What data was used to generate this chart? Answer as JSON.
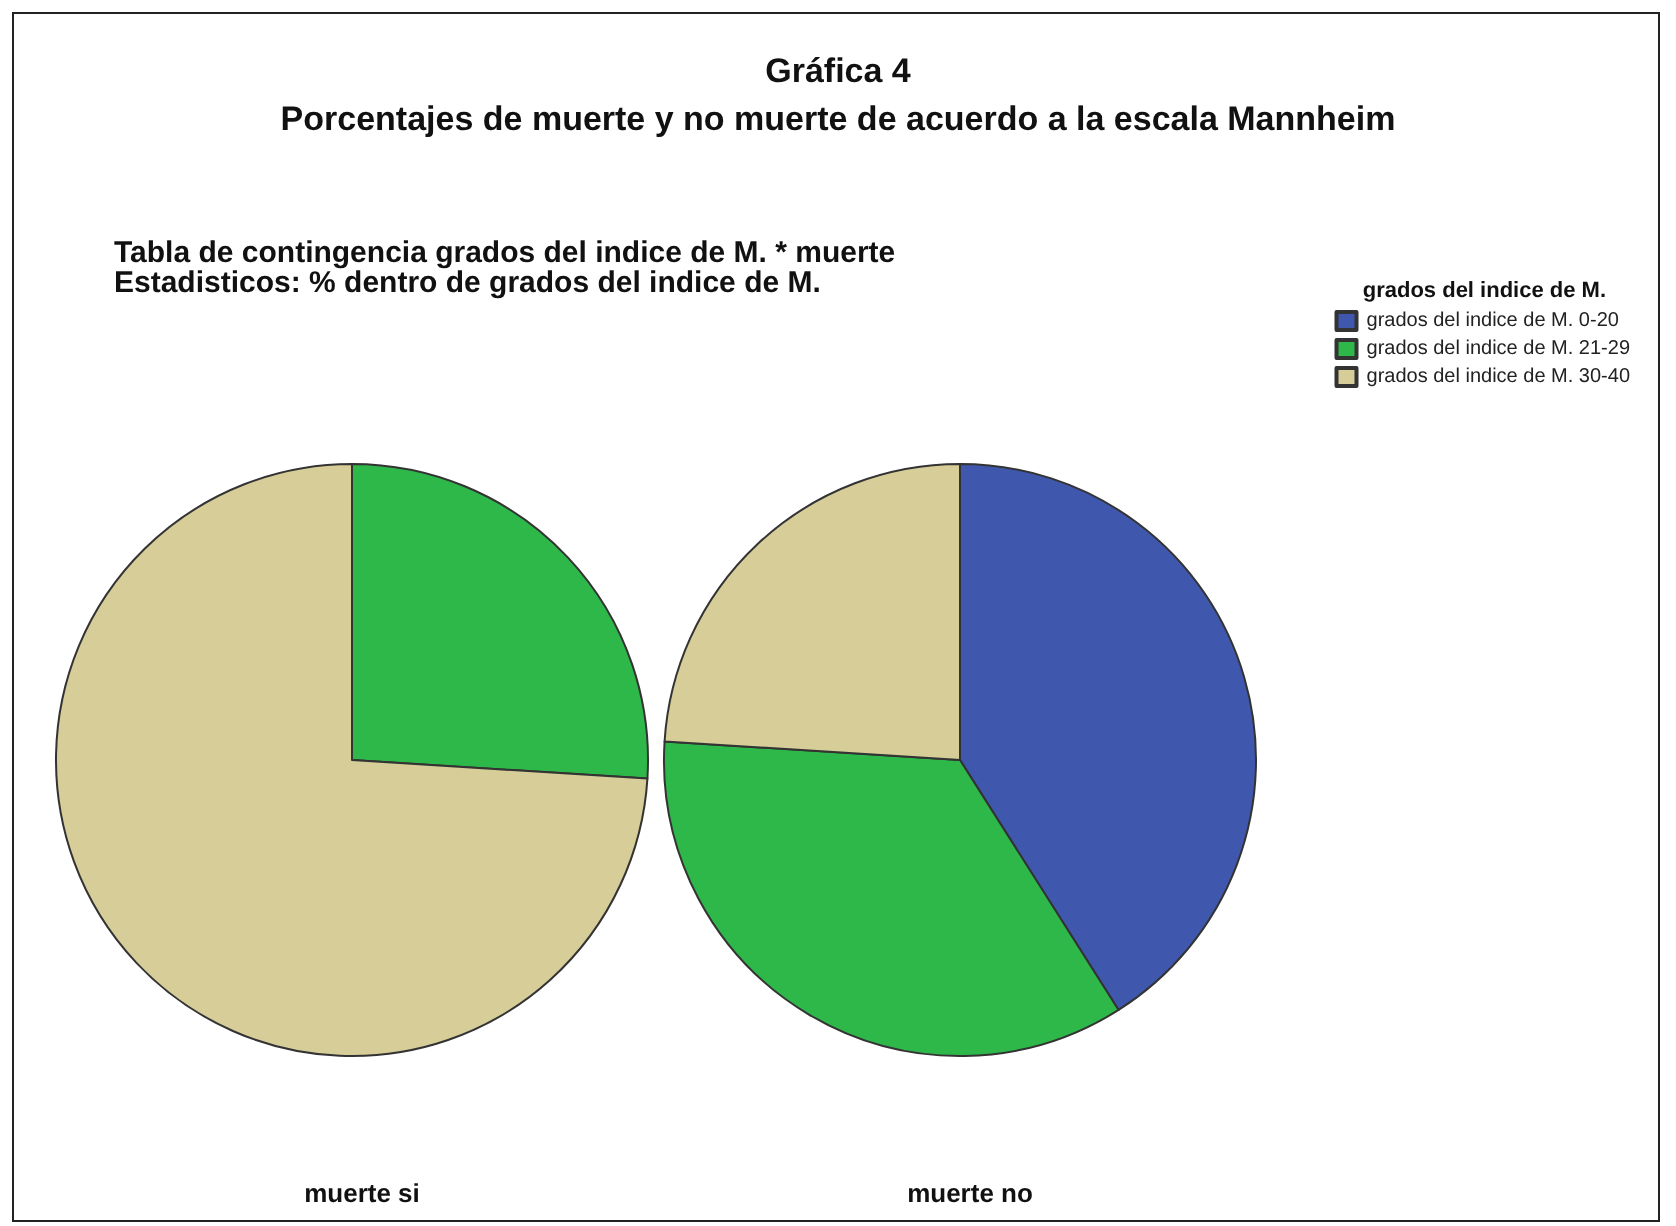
{
  "chart_data": {
    "type": "pie",
    "title": "Gráfica 4",
    "subtitle": "Porcentajes de muerte y no muerte de acuerdo a la escala Mannheim",
    "annotations": [
      "Tabla de contingencia grados del indice de M. * muerte",
      "Estadisticos: % dentro de grados del indice de M."
    ],
    "legend_title": "grados del indice de M.",
    "legend": "top right",
    "categories": [
      "grados del indice de M. 0-20",
      "grados del indice de M. 21-29",
      "grados del indice de M. 30-40"
    ],
    "colors": [
      "#3f58ae",
      "#2eb84a",
      "#d6cd98"
    ],
    "series": [
      {
        "name": "muerte si",
        "values": [
          0,
          26,
          74
        ]
      },
      {
        "name": "muerte no",
        "values": [
          41,
          35,
          24
        ]
      }
    ]
  }
}
